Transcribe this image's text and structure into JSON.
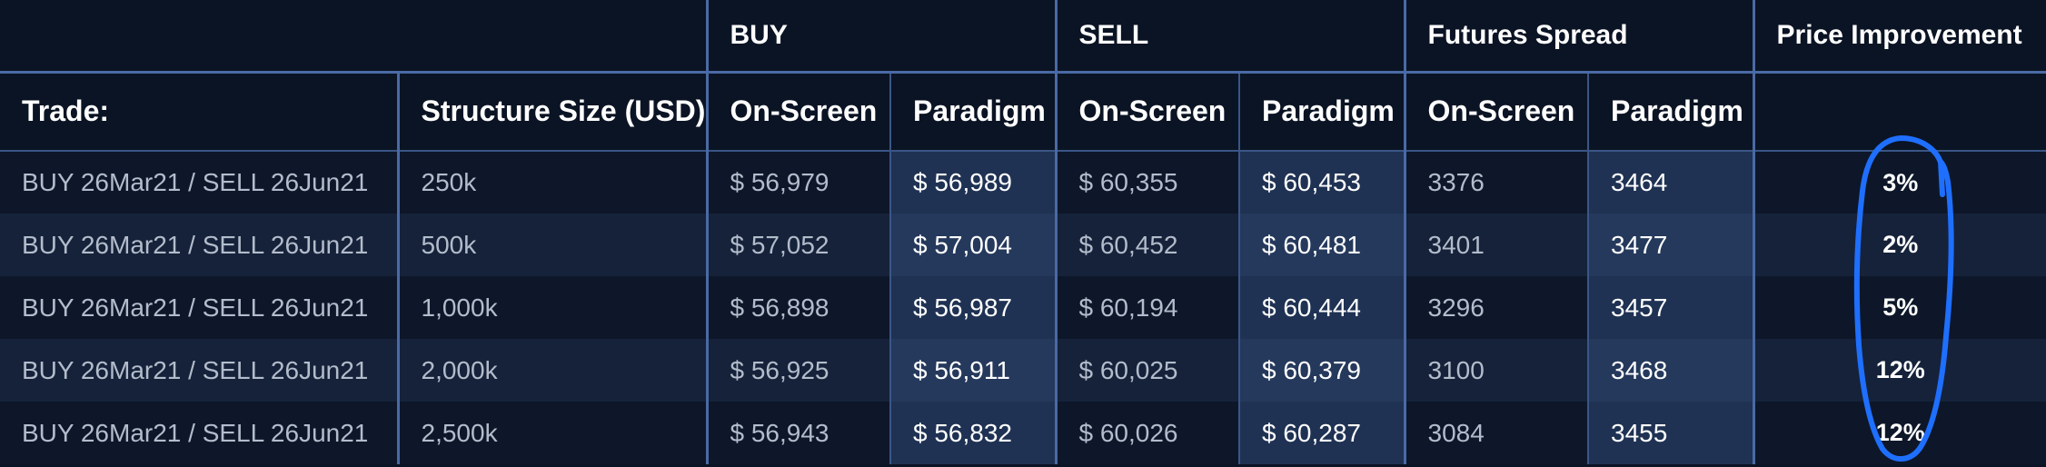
{
  "groups": {
    "buy": "BUY",
    "sell": "SELL",
    "spread": "Futures Spread",
    "improvement": "Price Improvement"
  },
  "headers": {
    "trade": "Trade:",
    "size": "Structure Size (USD)",
    "buy_onscreen": "On-Screen",
    "buy_paradigm": "Paradigm",
    "sell_onscreen": "On-Screen",
    "sell_paradigm": "Paradigm",
    "spread_onscreen": "On-Screen",
    "spread_paradigm": "Paradigm"
  },
  "rows": [
    {
      "trade": "BUY 26Mar21 / SELL 26Jun21",
      "size": "250k",
      "buy_onscreen": "$ 56,979",
      "buy_paradigm": "$ 56,989",
      "sell_onscreen": "$ 60,355",
      "sell_paradigm": "$ 60,453",
      "spread_onscreen": "3376",
      "spread_paradigm": "3464",
      "improvement": "3%"
    },
    {
      "trade": "BUY 26Mar21 / SELL 26Jun21",
      "size": "500k",
      "buy_onscreen": "$ 57,052",
      "buy_paradigm": "$ 57,004",
      "sell_onscreen": "$ 60,452",
      "sell_paradigm": "$ 60,481",
      "spread_onscreen": "3401",
      "spread_paradigm": "3477",
      "improvement": "2%"
    },
    {
      "trade": "BUY 26Mar21 / SELL 26Jun21",
      "size": "1,000k",
      "buy_onscreen": "$ 56,898",
      "buy_paradigm": "$ 56,987",
      "sell_onscreen": "$ 60,194",
      "sell_paradigm": "$ 60,444",
      "spread_onscreen": "3296",
      "spread_paradigm": "3457",
      "improvement": "5%"
    },
    {
      "trade": "BUY 26Mar21 / SELL 26Jun21",
      "size": "2,000k",
      "buy_onscreen": "$ 56,925",
      "buy_paradigm": "$ 56,911",
      "sell_onscreen": "$ 60,025",
      "sell_paradigm": "$ 60,379",
      "spread_onscreen": "3100",
      "spread_paradigm": "3468",
      "improvement": "12%"
    },
    {
      "trade": "BUY 26Mar21 / SELL 26Jun21",
      "size": "2,500k",
      "buy_onscreen": "$ 56,943",
      "buy_paradigm": "$ 56,832",
      "sell_onscreen": "$ 60,026",
      "sell_paradigm": "$ 60,287",
      "spread_onscreen": "3084",
      "spread_paradigm": "3455",
      "improvement": "12%"
    }
  ],
  "colors": {
    "background": "#0b1424",
    "row_alt": "#15223a",
    "paradigm_column": "#1f3253",
    "border": "#4a6aa5",
    "annotation": "#1f6fff"
  },
  "annotation": {
    "icon": "hand-drawn-circle-icon"
  }
}
